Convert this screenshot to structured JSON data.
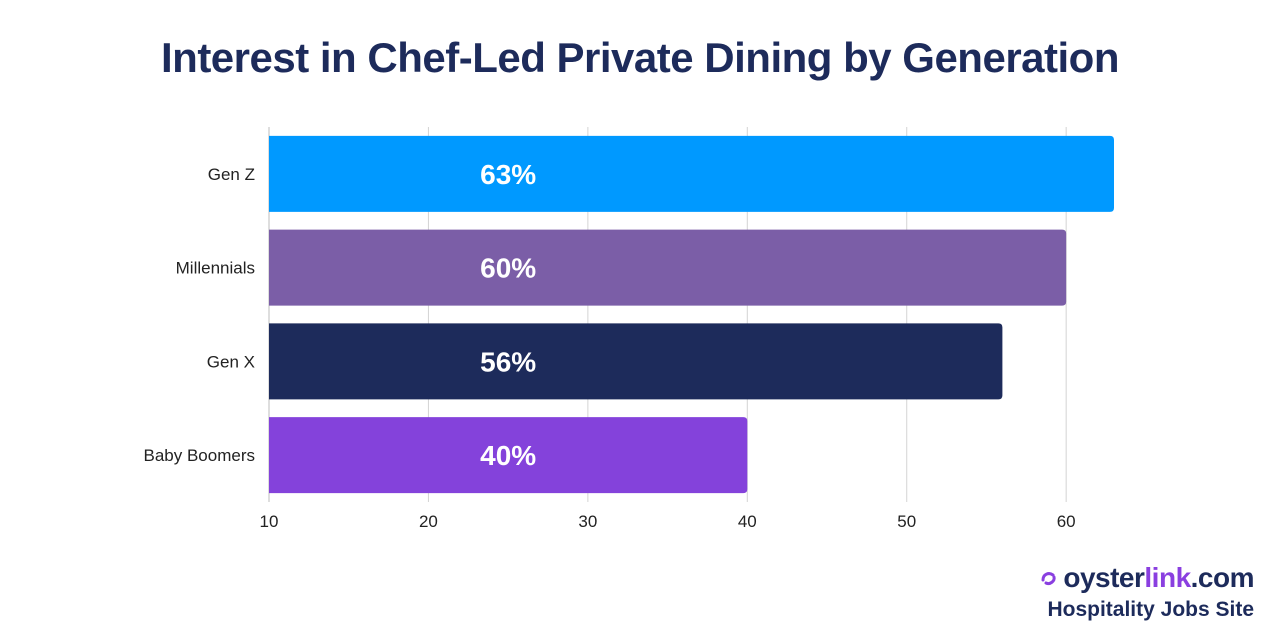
{
  "chart_data": {
    "type": "bar",
    "orientation": "horizontal",
    "title": "Interest in Chef-Led Private Dining by Generation",
    "categories": [
      "Gen Z",
      "Millennials",
      "Gen X",
      "Baby Boomers"
    ],
    "values": [
      63,
      60,
      56,
      40
    ],
    "data_labels": [
      "63%",
      "60%",
      "56%",
      "40%"
    ],
    "colors": [
      "#0099ff",
      "#7b5ea7",
      "#1d2b5b",
      "#8442db"
    ],
    "xlim": [
      10,
      63
    ],
    "xticks": [
      10,
      20,
      30,
      40,
      50,
      60
    ],
    "xlabel": "",
    "ylabel": "",
    "grid": true,
    "label_color": "#ffffff",
    "label_value_pos": 25
  },
  "brand": {
    "logo_text": "oyster",
    "logo_accent": "link",
    "logo_suffix": ".com",
    "tagline": "Hospitality Jobs Site",
    "icon": "oyster-swirl-icon"
  }
}
